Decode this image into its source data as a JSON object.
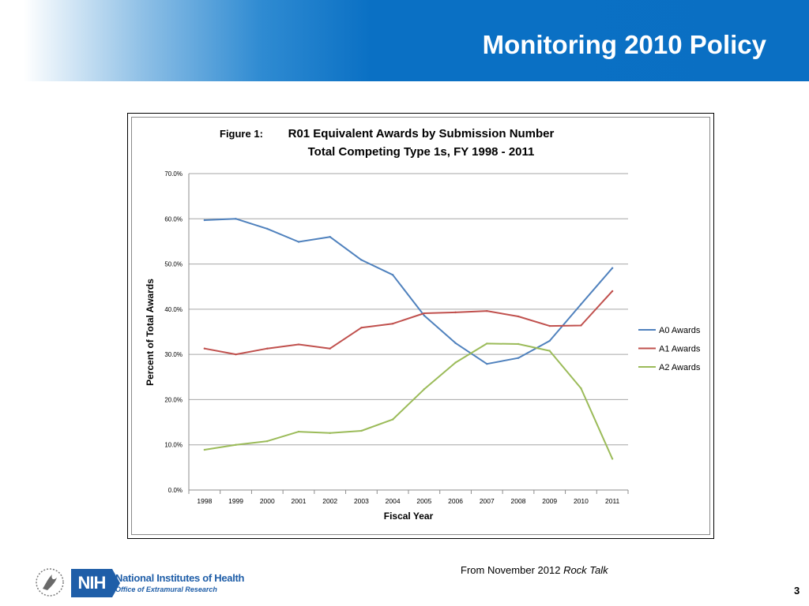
{
  "slide": {
    "title": "Monitoring 2010 Policy",
    "caption_prefix": "From November 2012 ",
    "caption_italic": "Rock Talk",
    "page_number": "3",
    "org_name": "National Institutes of Health",
    "org_sub": "Office of Extramural Research",
    "nih_logo_text": "NIH"
  },
  "chart_data": {
    "type": "line",
    "figure_label": "Figure 1:",
    "title": "R01 Equivalent Awards by Submission Number",
    "subtitle": "Total Competing Type 1s, FY 1998 - 2011",
    "xlabel": "Fiscal Year",
    "ylabel": "Percent of Total Awards",
    "ylim": [
      0,
      70
    ],
    "y_ticks": [
      "0.0%",
      "10.0%",
      "20.0%",
      "30.0%",
      "40.0%",
      "50.0%",
      "60.0%",
      "70.0%"
    ],
    "categories": [
      "1998",
      "1999",
      "2000",
      "2001",
      "2002",
      "2003",
      "2004",
      "2005",
      "2006",
      "2007",
      "2008",
      "2009",
      "2010",
      "2011"
    ],
    "grid": true,
    "legend_position": "right",
    "series": [
      {
        "name": "A0 Awards",
        "color": "#4f81bd",
        "values": [
          59.7,
          60.0,
          57.8,
          54.9,
          56.0,
          50.9,
          47.6,
          38.6,
          32.5,
          27.9,
          29.2,
          33.0,
          41.1,
          49.1
        ]
      },
      {
        "name": "A1 Awards",
        "color": "#c0504d",
        "values": [
          31.3,
          30.0,
          31.3,
          32.2,
          31.3,
          35.9,
          36.8,
          39.1,
          39.3,
          39.6,
          38.4,
          36.3,
          36.4,
          44.0
        ]
      },
      {
        "name": "A2 Awards",
        "color": "#9bbb59",
        "values": [
          8.9,
          10.0,
          10.8,
          12.9,
          12.6,
          13.1,
          15.6,
          22.3,
          28.2,
          32.4,
          32.3,
          30.8,
          22.5,
          6.9
        ]
      }
    ]
  }
}
